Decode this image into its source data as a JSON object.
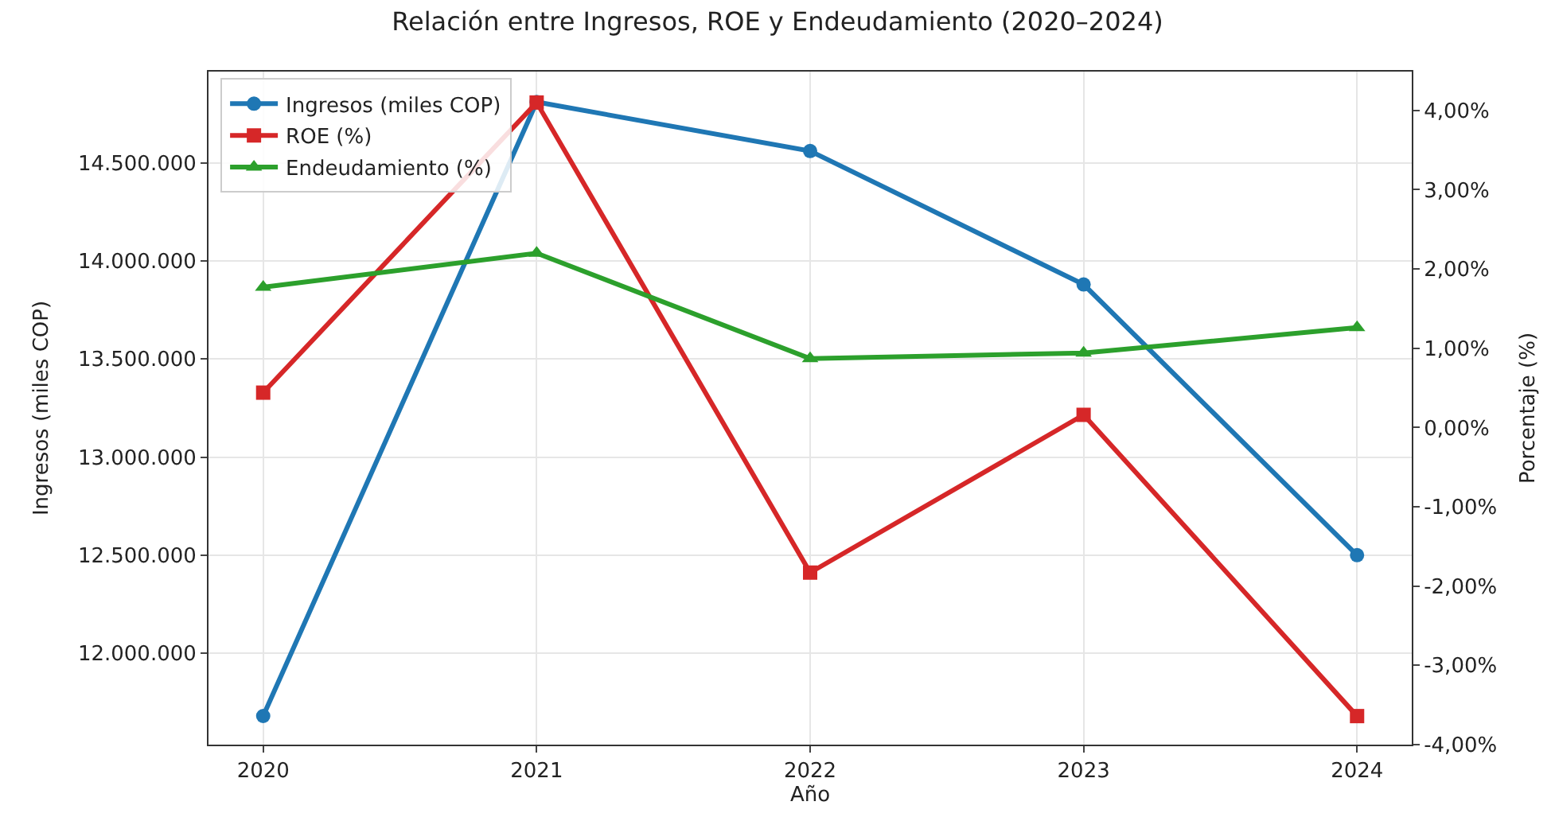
{
  "chart_data": {
    "type": "line",
    "title": "Relación entre Ingresos, ROE y Endeudamiento (2020–2024)",
    "xlabel": "Año",
    "ylabel": "Ingresos (miles COP)",
    "y2label": "Porcentaje (%)",
    "x": [
      2020,
      2021,
      2022,
      2023,
      2024
    ],
    "series": [
      {
        "name": "Ingresos (miles COP)",
        "color": "#1f77b4",
        "marker": "circle",
        "values": [
          11680000,
          14810000,
          14560000,
          13880000,
          12500000
        ]
      },
      {
        "name": "ROE (%)",
        "color": "#d62728",
        "marker": "square",
        "axis": "y2",
        "values": [
          0.44,
          4.1,
          -1.83,
          0.16,
          -3.64
        ]
      },
      {
        "name": "Endeudamiento (%)",
        "color": "#2ca02c",
        "marker": "triangle",
        "axis": "y2",
        "values": [
          1.77,
          2.2,
          0.87,
          0.94,
          1.26
        ]
      }
    ],
    "xlim": [
      2019.8,
      2024.2
    ],
    "xticks": [
      2020,
      2021,
      2022,
      2023,
      2024
    ],
    "ylim": [
      11534000,
      14965000
    ],
    "yticks": [
      {
        "value": 12000000,
        "label": "12.000.000"
      },
      {
        "value": 12500000,
        "label": "12.500.000"
      },
      {
        "value": 13000000,
        "label": "13.000.000"
      },
      {
        "value": 13500000,
        "label": "13.500.000"
      },
      {
        "value": 14000000,
        "label": "14.000.000"
      },
      {
        "value": 14500000,
        "label": "14.500.000"
      }
    ],
    "y2lim": [
      -4,
      4.49
    ],
    "y2ticks": [
      {
        "value": -4,
        "label": "-4,00%"
      },
      {
        "value": -3,
        "label": "-3,00%"
      },
      {
        "value": -2,
        "label": "-2,00%"
      },
      {
        "value": -1,
        "label": "-1,00%"
      },
      {
        "value": 0,
        "label": "0,00%"
      },
      {
        "value": 1,
        "label": "1,00%"
      },
      {
        "value": 2,
        "label": "2,00%"
      },
      {
        "value": 3,
        "label": "3,00%"
      },
      {
        "value": 4,
        "label": "4,00%"
      }
    ],
    "grid": true,
    "legend": "top left",
    "line_style": "solid"
  }
}
